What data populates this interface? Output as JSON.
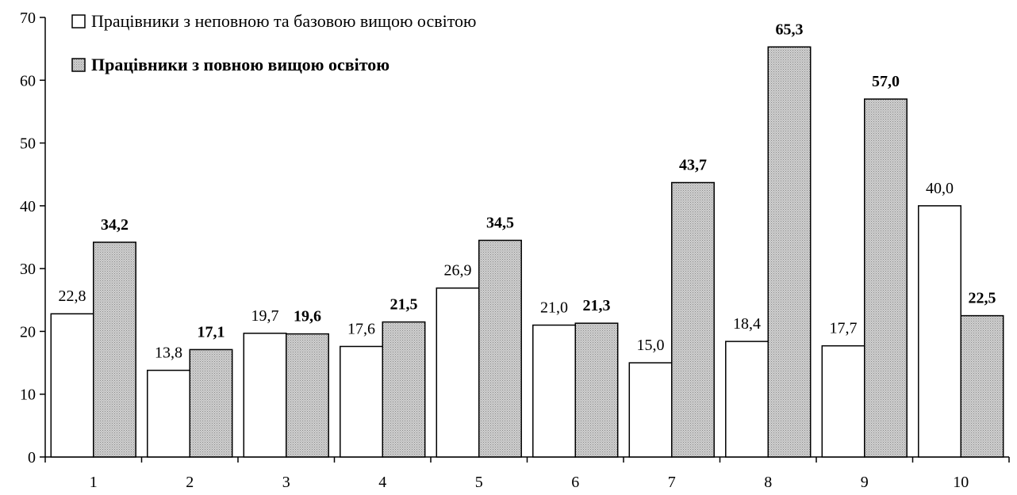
{
  "chart_data": {
    "type": "bar",
    "categories": [
      "1",
      "2",
      "3",
      "4",
      "5",
      "6",
      "7",
      "8",
      "9",
      "10"
    ],
    "series": [
      {
        "name": "Працівники з неповною та базовою вищою освітою",
        "values": [
          22.8,
          13.8,
          19.7,
          17.6,
          26.9,
          21.0,
          15.0,
          18.4,
          17.7,
          40.0
        ],
        "labels": [
          "22,8",
          "13,8",
          "19,7",
          "17,6",
          "26,9",
          "21,0",
          "15,0",
          "18,4",
          "17,7",
          "40,0"
        ],
        "fill": "#ffffff",
        "label_bold": false
      },
      {
        "name": "Працівники з повною вищою освітою",
        "values": [
          34.2,
          17.1,
          19.6,
          21.5,
          34.5,
          21.3,
          43.7,
          65.3,
          57.0,
          22.5
        ],
        "labels": [
          "34,2",
          "17,1",
          "19,6",
          "21,5",
          "34,5",
          "21,3",
          "43,7",
          "65,3",
          "57,0",
          "22,5"
        ],
        "fill": "#c8c8c8",
        "label_bold": true
      }
    ],
    "ylim": [
      0,
      70
    ],
    "yticks": [
      "0",
      "10",
      "20",
      "30",
      "40",
      "50",
      "60",
      "70"
    ],
    "legend_position": "top-left",
    "grid": false
  }
}
